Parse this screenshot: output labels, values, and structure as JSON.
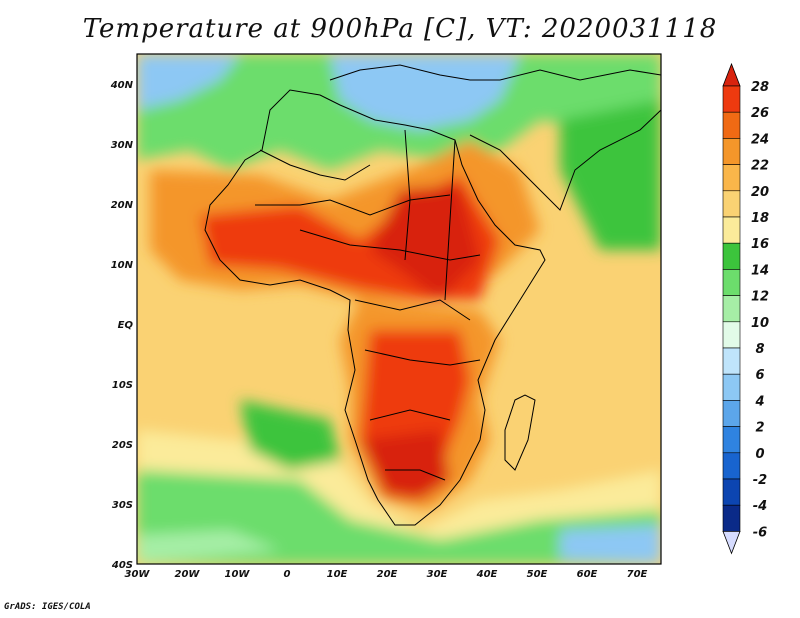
{
  "title": "Temperature at 900hPa [C], VT: 2020031118",
  "credit": "GrADS: IGES/COLA",
  "map": {
    "lon_range": [
      -30,
      75
    ],
    "lat_range": [
      -40,
      45
    ],
    "lon_ticks": [
      "30W",
      "20W",
      "10W",
      "0",
      "10E",
      "20E",
      "30E",
      "40E",
      "50E",
      "60E",
      "70E"
    ],
    "lat_ticks": [
      "40N",
      "30N",
      "20N",
      "10N",
      "EQ",
      "10S",
      "20S",
      "30S",
      "40S"
    ]
  },
  "colorbar": {
    "levels": [
      "28",
      "26",
      "24",
      "22",
      "20",
      "18",
      "16",
      "14",
      "12",
      "10",
      "8",
      "6",
      "4",
      "2",
      "0",
      "-2",
      "-4",
      "-6"
    ],
    "colors": [
      "#d8230e",
      "#ee3a0f",
      "#f06a14",
      "#f4962a",
      "#fab64a",
      "#fad273",
      "#fbeb9a",
      "#3cc43c",
      "#6cdd6c",
      "#a6eea6",
      "#e2fbe8",
      "#bfe4fb",
      "#8dc8f4",
      "#5ca6ea",
      "#2f83e0",
      "#1864cf",
      "#0c45b1",
      "#0a2a88",
      "#0a1a5e"
    ],
    "top_color": "#d8230e",
    "bottom_color": "#d6dcff"
  }
}
